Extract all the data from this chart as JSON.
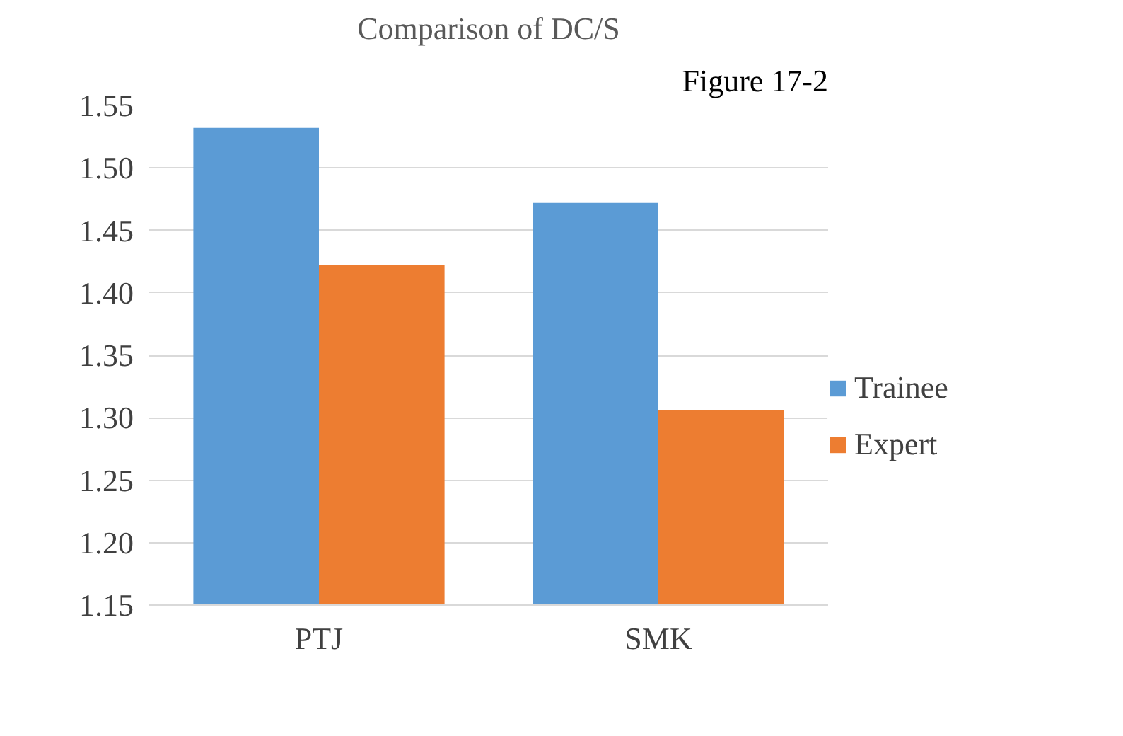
{
  "chart_data": {
    "type": "bar",
    "title": "Comparison of DC/S",
    "annotations": [
      "Figure 17-2"
    ],
    "categories": [
      "PTJ",
      "SMK"
    ],
    "series": [
      {
        "name": "Trainee",
        "color": "#5b9bd5",
        "values": [
          1.532,
          1.472
        ]
      },
      {
        "name": "Expert",
        "color": "#ed7d31",
        "values": [
          1.422,
          1.306
        ]
      }
    ],
    "ylim": [
      1.15,
      1.55
    ],
    "yticks": [
      {
        "value": 1.15,
        "label": "1.15"
      },
      {
        "value": 1.2,
        "label": "1.20"
      },
      {
        "value": 1.25,
        "label": "1.25"
      },
      {
        "value": 1.3,
        "label": "1.30"
      },
      {
        "value": 1.35,
        "label": "1.35"
      },
      {
        "value": 1.4,
        "label": "1.40"
      },
      {
        "value": 1.45,
        "label": "1.45"
      },
      {
        "value": 1.5,
        "label": "1.50"
      },
      {
        "value": 1.55,
        "label": "1.55"
      }
    ],
    "grid": "y",
    "legend": "right"
  }
}
